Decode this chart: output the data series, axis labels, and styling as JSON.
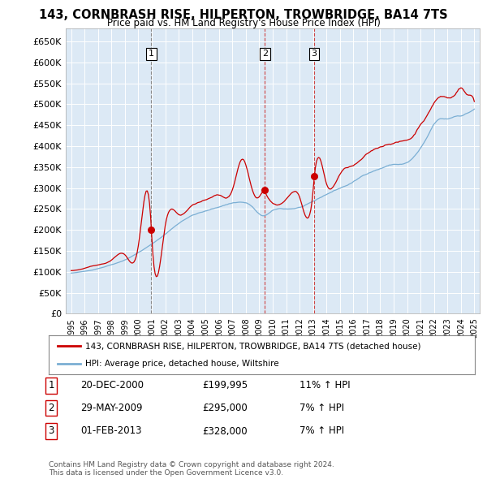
{
  "title": "143, CORNBRASH RISE, HILPERTON, TROWBRIDGE, BA14 7TS",
  "subtitle": "Price paid vs. HM Land Registry's House Price Index (HPI)",
  "ylim": [
    0,
    680000
  ],
  "yticks": [
    0,
    50000,
    100000,
    150000,
    200000,
    250000,
    300000,
    350000,
    400000,
    450000,
    500000,
    550000,
    600000,
    650000
  ],
  "background_color": "#ffffff",
  "chart_bg_color": "#dce9f5",
  "grid_color": "#ffffff",
  "legend_label_red": "143, CORNBRASH RISE, HILPERTON, TROWBRIDGE, BA14 7TS (detached house)",
  "legend_label_blue": "HPI: Average price, detached house, Wiltshire",
  "sale_year_floats": [
    2000.97,
    2009.41,
    2013.08
  ],
  "sale_prices": [
    199995,
    295000,
    328000
  ],
  "sale_labels": [
    "1",
    "2",
    "3"
  ],
  "sale_info": [
    {
      "num": "1",
      "date": "20-DEC-2000",
      "price": "£199,995",
      "hpi": "11% ↑ HPI"
    },
    {
      "num": "2",
      "date": "29-MAY-2009",
      "price": "£295,000",
      "hpi": "7% ↑ HPI"
    },
    {
      "num": "3",
      "date": "01-FEB-2013",
      "price": "£328,000",
      "hpi": "7% ↑ HPI"
    }
  ],
  "footer": "Contains HM Land Registry data © Crown copyright and database right 2024.\nThis data is licensed under the Open Government Licence v3.0.",
  "red_color": "#cc0000",
  "blue_color": "#7bafd4",
  "vline_color_gray": "#888888",
  "vline_color_red": "#cc4444"
}
